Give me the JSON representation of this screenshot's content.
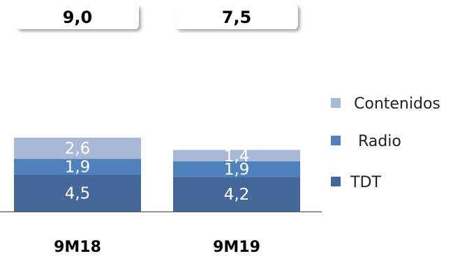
{
  "chart_data": {
    "type": "bar",
    "stacked": true,
    "categories": [
      "9M18",
      "9M19"
    ],
    "totals": [
      "9,0",
      "7,5"
    ],
    "series": [
      {
        "name": "TDT",
        "values": [
          4.5,
          4.2
        ],
        "labels": [
          "4,5",
          "4,2"
        ],
        "color": "#44689a"
      },
      {
        "name": "Radio",
        "values": [
          1.9,
          1.9
        ],
        "labels": [
          "1,9",
          "1,9"
        ],
        "color": "#4f81bd"
      },
      {
        "name": "Contenidos",
        "values": [
          2.6,
          1.4
        ],
        "labels": [
          "2,6",
          "1,4"
        ],
        "color": "#a7b9d7"
      }
    ],
    "legend_order": [
      "Contenidos",
      "Radio",
      "TDT"
    ],
    "legend_position": "right",
    "title": "",
    "xlabel": "",
    "ylabel": "",
    "ylim": [
      0,
      9
    ],
    "grid": false
  }
}
